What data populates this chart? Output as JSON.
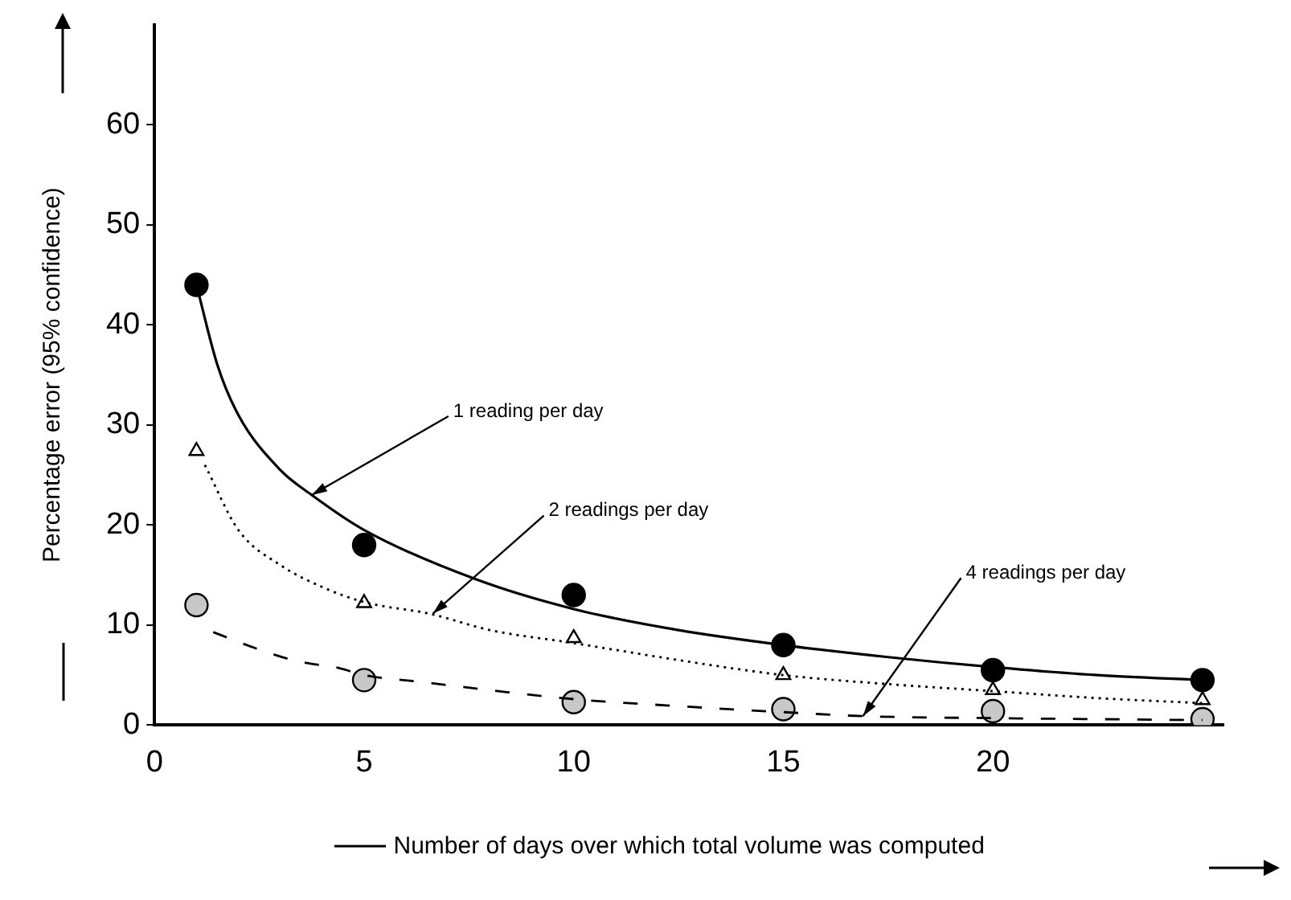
{
  "chart_data": {
    "type": "scatter",
    "xlabel": "Number of days over which total volume was computed",
    "ylabel": "Percentage error (95% confidence)",
    "xlim": [
      0,
      25.5
    ],
    "xticks": [
      0,
      5,
      10,
      15,
      20
    ],
    "ylim": [
      0,
      70
    ],
    "yticks": [
      0,
      10,
      20,
      30,
      40,
      50,
      60
    ],
    "grid": false,
    "legend": false,
    "series": [
      {
        "type": "line",
        "color": "#000000",
        "marker": "none",
        "line_style": "solid",
        "x": [
          1,
          1.5,
          2,
          3,
          3.75,
          5,
          7.65,
          10,
          12.5,
          15,
          17.5,
          20,
          22.5,
          25
        ],
        "values": [
          44,
          36,
          31,
          25.5,
          23,
          19.5,
          14.6,
          11.6,
          9.5,
          8,
          6.8,
          5.8,
          5,
          4.5
        ]
      },
      {
        "type": "line",
        "color": "#000000",
        "marker": "none",
        "line_style": "dotted",
        "x": [
          1.2,
          2,
          3,
          4,
          5,
          6.6,
          8,
          10,
          12.5,
          15,
          17.5,
          20,
          22.5,
          25
        ],
        "values": [
          26,
          19.5,
          16,
          13.8,
          12.3,
          11.1,
          9.5,
          8.2,
          6.5,
          5,
          4.1,
          3.4,
          2.7,
          2.2
        ]
      },
      {
        "type": "line",
        "color": "#000000",
        "marker": "none",
        "line_style": "dashed",
        "x": [
          1.4,
          2.4,
          3.4,
          4.4,
          5,
          6.4,
          8.4,
          10,
          12.5,
          15,
          16.9,
          20,
          22.5,
          25
        ],
        "values": [
          9.3,
          7.7,
          6.4,
          5.7,
          5,
          4.3,
          3.3,
          2.6,
          1.9,
          1.3,
          0.9,
          0.7,
          0.6,
          0.5
        ]
      },
      {
        "type": "scatter",
        "color": "#000000",
        "marker": "circle",
        "x": [
          1,
          5,
          10,
          15,
          20,
          25
        ],
        "values": [
          44,
          18,
          13,
          8,
          5.5,
          4.5
        ]
      },
      {
        "type": "scatter",
        "color": "#000000",
        "marker": "triangle",
        "x": [
          1,
          5,
          10,
          15,
          20,
          25
        ],
        "values": [
          27.4,
          12.2,
          8.7,
          5,
          3.5,
          2.5
        ]
      },
      {
        "type": "scatter",
        "color": "#c8c8c8",
        "marker": "circle",
        "x": [
          1,
          5,
          10,
          15,
          20,
          25
        ],
        "values": [
          12,
          4.5,
          2.3,
          1.6,
          1.4,
          0.6
        ]
      }
    ],
    "annotations": [
      {
        "text": "1 reading per day",
        "x": 3.75,
        "y": 23
      },
      {
        "text": "2 readings per day",
        "x": 6.64,
        "y": 11.15
      },
      {
        "text": "4 readings per day",
        "x": 16.9,
        "y": 0.9
      }
    ]
  }
}
